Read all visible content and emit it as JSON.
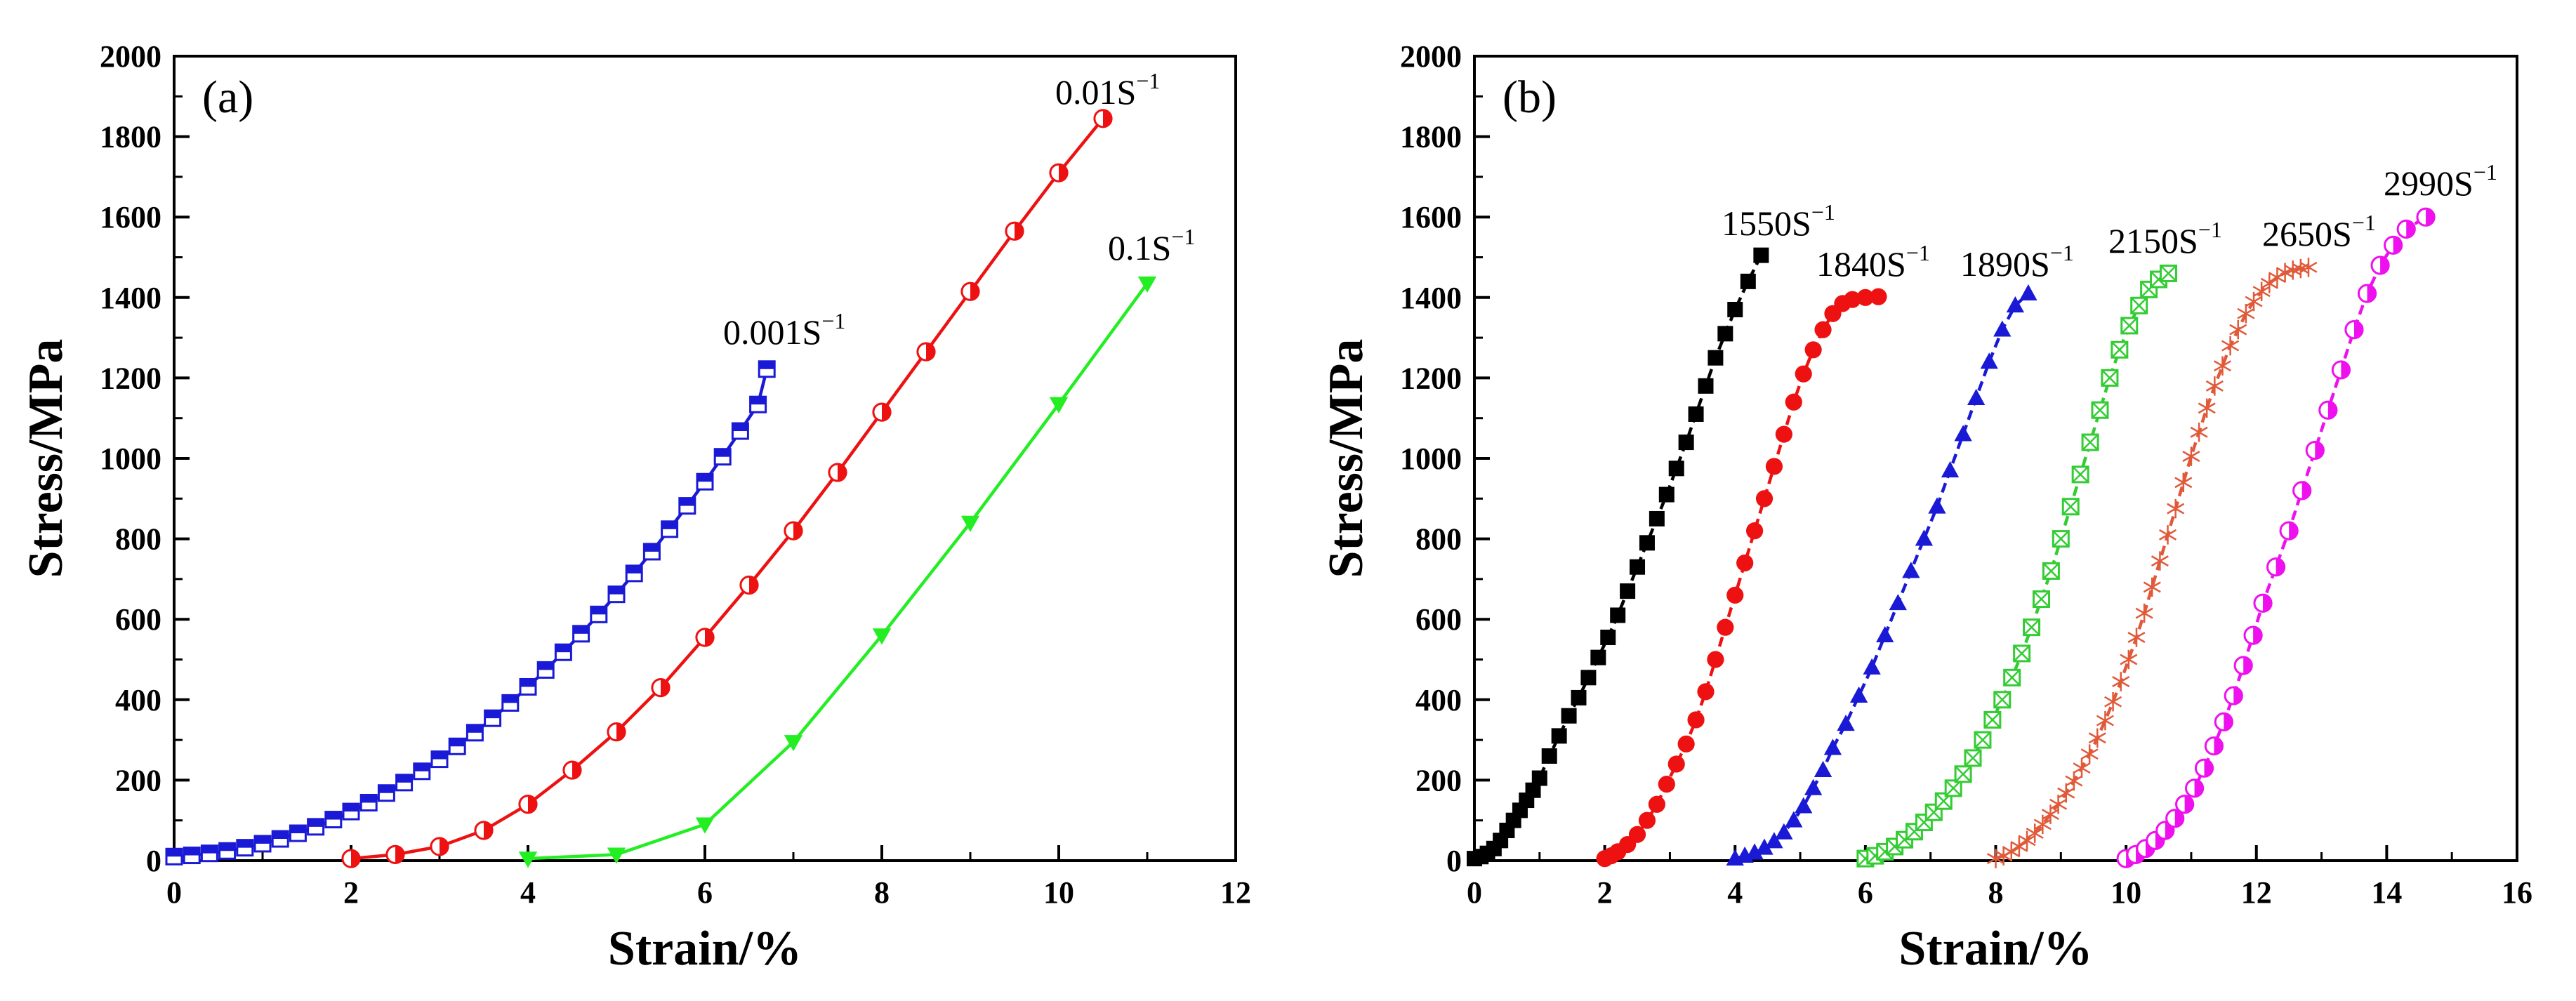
{
  "chart_data": [
    {
      "type": "line",
      "panel_label": "(a)",
      "xlabel": "Strain/%",
      "ylabel": "Stress/MPa",
      "xlim": [
        0,
        12
      ],
      "ylim": [
        0,
        2000
      ],
      "xticks": [
        0,
        2,
        4,
        6,
        8,
        10,
        12
      ],
      "yticks": [
        0,
        200,
        400,
        600,
        800,
        1000,
        1200,
        1400,
        1600,
        1800,
        2000
      ],
      "grid": false,
      "series": [
        {
          "name": "0.001S",
          "sup": "−1",
          "color": "#1a1ad6",
          "marker": "half-square",
          "x": [
            0.0,
            0.2,
            0.4,
            0.6,
            0.8,
            1.0,
            1.2,
            1.4,
            1.6,
            1.8,
            2.0,
            2.2,
            2.4,
            2.6,
            2.8,
            3.0,
            3.2,
            3.4,
            3.6,
            3.8,
            4.0,
            4.2,
            4.4,
            4.6,
            4.8,
            5.0,
            5.2,
            5.4,
            5.6,
            5.8,
            6.0,
            6.2,
            6.4,
            6.6,
            6.7
          ],
          "y": [
            10,
            13,
            18,
            24,
            32,
            42,
            54,
            68,
            84,
            102,
            122,
            144,
            168,
            194,
            222,
            252,
            284,
            318,
            354,
            392,
            432,
            474,
            518,
            564,
            612,
            662,
            714,
            768,
            824,
            882,
            942,
            1004,
            1068,
            1134,
            1222
          ]
        },
        {
          "name": "0.01S",
          "sup": "−1",
          "color": "#ee1111",
          "marker": "half-circle",
          "x": [
            2.0,
            2.5,
            3.0,
            3.5,
            4.0,
            4.5,
            5.0,
            5.5,
            6.0,
            6.5,
            7.0,
            7.5,
            8.0,
            8.5,
            9.0,
            9.5,
            10.0,
            10.5
          ],
          "y": [
            5,
            15,
            35,
            75,
            140,
            225,
            320,
            430,
            555,
            685,
            820,
            965,
            1115,
            1265,
            1415,
            1565,
            1710,
            1845
          ]
        },
        {
          "name": "0.1S",
          "sup": "−1",
          "color": "#22ee22",
          "marker": "triangle-down",
          "x": [
            4.0,
            5.0,
            6.0,
            7.0,
            8.0,
            9.0,
            10.0,
            11.0
          ],
          "y": [
            5,
            15,
            90,
            295,
            560,
            840,
            1135,
            1435
          ]
        }
      ]
    },
    {
      "type": "line",
      "panel_label": "(b)",
      "xlabel": "Strain/%",
      "ylabel": "Stress/MPa",
      "xlim": [
        0,
        16
      ],
      "ylim": [
        0,
        2000
      ],
      "xticks": [
        0,
        2,
        4,
        6,
        8,
        10,
        12,
        14,
        16
      ],
      "yticks": [
        0,
        200,
        400,
        600,
        800,
        1000,
        1200,
        1400,
        1600,
        1800,
        2000
      ],
      "grid": false,
      "series": [
        {
          "name": "1550S",
          "sup": "−1",
          "color": "#000000",
          "marker": "square",
          "x": [
            0.0,
            0.1,
            0.2,
            0.3,
            0.4,
            0.5,
            0.6,
            0.7,
            0.8,
            0.9,
            1.0,
            1.15,
            1.3,
            1.45,
            1.6,
            1.75,
            1.9,
            2.05,
            2.2,
            2.35,
            2.5,
            2.65,
            2.8,
            2.95,
            3.1,
            3.25,
            3.4,
            3.55,
            3.7,
            3.85,
            4.0,
            4.2,
            4.4
          ],
          "y": [
            5,
            10,
            18,
            30,
            50,
            75,
            100,
            125,
            150,
            175,
            205,
            260,
            310,
            360,
            405,
            455,
            505,
            555,
            610,
            670,
            730,
            790,
            850,
            910,
            975,
            1040,
            1110,
            1180,
            1250,
            1310,
            1370,
            1440,
            1505
          ]
        },
        {
          "name": "1840S",
          "sup": "−1",
          "color": "#ee1111",
          "marker": "circle",
          "x": [
            2.0,
            2.1,
            2.2,
            2.35,
            2.5,
            2.65,
            2.8,
            2.95,
            3.1,
            3.25,
            3.4,
            3.55,
            3.7,
            3.85,
            4.0,
            4.15,
            4.3,
            4.45,
            4.6,
            4.75,
            4.9,
            5.05,
            5.2,
            5.35,
            5.5,
            5.65,
            5.8,
            6.0,
            6.2
          ],
          "y": [
            5,
            12,
            22,
            40,
            65,
            100,
            140,
            190,
            240,
            290,
            350,
            420,
            500,
            580,
            660,
            740,
            820,
            900,
            980,
            1060,
            1140,
            1210,
            1270,
            1320,
            1360,
            1385,
            1395,
            1400,
            1402
          ]
        },
        {
          "name": "1890S",
          "sup": "−1",
          "color": "#1a1ad6",
          "marker": "triangle-up",
          "x": [
            4.0,
            4.15,
            4.3,
            4.45,
            4.6,
            4.75,
            4.9,
            5.05,
            5.2,
            5.35,
            5.5,
            5.7,
            5.9,
            6.1,
            6.3,
            6.5,
            6.7,
            6.9,
            7.1,
            7.3,
            7.5,
            7.7,
            7.9,
            8.1,
            8.3,
            8.5
          ],
          "y": [
            5,
            12,
            20,
            32,
            48,
            70,
            100,
            135,
            180,
            225,
            280,
            340,
            410,
            480,
            560,
            640,
            720,
            800,
            880,
            970,
            1060,
            1150,
            1240,
            1320,
            1380,
            1410
          ]
        },
        {
          "name": "2150S",
          "sup": "−1",
          "color": "#33cc33",
          "marker": "boxed-x",
          "x": [
            6.0,
            6.15,
            6.3,
            6.45,
            6.6,
            6.75,
            6.9,
            7.05,
            7.2,
            7.35,
            7.5,
            7.65,
            7.8,
            7.95,
            8.1,
            8.25,
            8.4,
            8.55,
            8.7,
            8.85,
            9.0,
            9.15,
            9.3,
            9.45,
            9.6,
            9.75,
            9.9,
            10.05,
            10.2,
            10.35,
            10.5,
            10.65
          ],
          "y": [
            5,
            12,
            22,
            35,
            52,
            72,
            95,
            120,
            148,
            180,
            215,
            255,
            300,
            350,
            400,
            455,
            515,
            580,
            650,
            720,
            800,
            880,
            960,
            1040,
            1120,
            1200,
            1270,
            1330,
            1380,
            1420,
            1445,
            1460
          ]
        },
        {
          "name": "2650S",
          "sup": "−1",
          "color": "#e05a3a",
          "marker": "star",
          "x": [
            8.0,
            8.12,
            8.24,
            8.36,
            8.48,
            8.6,
            8.72,
            8.84,
            8.96,
            9.08,
            9.2,
            9.32,
            9.44,
            9.56,
            9.68,
            9.8,
            9.92,
            10.04,
            10.16,
            10.28,
            10.4,
            10.52,
            10.64,
            10.76,
            10.88,
            11.0,
            11.12,
            11.24,
            11.36,
            11.48,
            11.6,
            11.72,
            11.84,
            11.96,
            12.08,
            12.2,
            12.32,
            12.44,
            12.56,
            12.68,
            12.8
          ],
          "y": [
            5,
            12,
            22,
            35,
            50,
            68,
            90,
            115,
            140,
            168,
            198,
            230,
            265,
            305,
            348,
            395,
            445,
            500,
            555,
            615,
            680,
            745,
            810,
            875,
            940,
            1005,
            1065,
            1125,
            1180,
            1230,
            1280,
            1320,
            1360,
            1390,
            1415,
            1435,
            1450,
            1462,
            1468,
            1472,
            1475
          ]
        },
        {
          "name": "2990S",
          "sup": "−1",
          "color": "#ee11ee",
          "marker": "half-circle",
          "x": [
            10.0,
            10.15,
            10.3,
            10.45,
            10.6,
            10.75,
            10.9,
            11.05,
            11.2,
            11.35,
            11.5,
            11.65,
            11.8,
            11.95,
            12.1,
            12.3,
            12.5,
            12.7,
            12.9,
            13.1,
            13.3,
            13.5,
            13.7,
            13.9,
            14.1,
            14.3,
            14.6
          ],
          "y": [
            5,
            15,
            30,
            50,
            75,
            105,
            140,
            180,
            230,
            285,
            345,
            410,
            485,
            560,
            640,
            730,
            820,
            920,
            1020,
            1120,
            1220,
            1320,
            1410,
            1480,
            1530,
            1570,
            1600
          ]
        }
      ]
    }
  ]
}
